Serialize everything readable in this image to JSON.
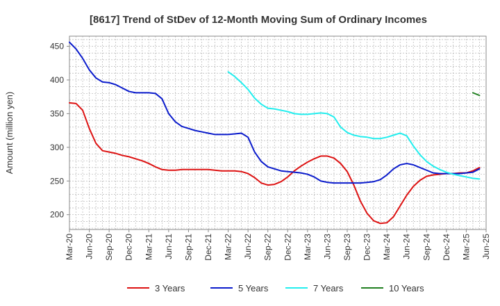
{
  "chart_data": {
    "type": "line",
    "title": "[8617]  Trend of StDev of 12-Month Moving Sum of Ordinary Incomes",
    "xlabel": "",
    "ylabel": "Amount (million yen)",
    "ylim": [
      178,
      465
    ],
    "yticks": [
      200,
      250,
      300,
      350,
      400,
      450
    ],
    "x_tick_labels": [
      "Mar-20",
      "Jun-20",
      "Sep-20",
      "Dec-20",
      "Mar-21",
      "Jun-21",
      "Sep-21",
      "Dec-21",
      "Mar-22",
      "Jun-22",
      "Sep-22",
      "Dec-22",
      "Mar-23",
      "Jun-23",
      "Sep-23",
      "Dec-23",
      "Mar-24",
      "Jun-24",
      "Sep-24",
      "Dec-24",
      "Mar-25",
      "Jun-25"
    ],
    "x_start": "Mar-20",
    "x_unit": "months since Mar-20",
    "x_range": [
      0,
      63
    ],
    "series": [
      {
        "name": "3 Years",
        "color": "#dd1111",
        "start_month": 0,
        "values": [
          366,
          365,
          355,
          328,
          306,
          295,
          293,
          291,
          288,
          286,
          283,
          280,
          276,
          271,
          267,
          266,
          266,
          267,
          267,
          267,
          267,
          267,
          266,
          265,
          265,
          265,
          264,
          261,
          255,
          247,
          244,
          245,
          249,
          256,
          265,
          272,
          278,
          283,
          287,
          287,
          284,
          276,
          264,
          244,
          220,
          202,
          191,
          187,
          188,
          197,
          213,
          229,
          242,
          251,
          257,
          259,
          260,
          261,
          261,
          262,
          262,
          265,
          270
        ]
      },
      {
        "name": "5 Years",
        "color": "#0a1bcc",
        "start_month": 0,
        "values": [
          456,
          446,
          432,
          415,
          403,
          397,
          396,
          393,
          388,
          383,
          381,
          381,
          381,
          380,
          372,
          350,
          338,
          331,
          328,
          325,
          323,
          321,
          319,
          319,
          319,
          320,
          321,
          315,
          293,
          279,
          271,
          268,
          265,
          264,
          263,
          262,
          260,
          256,
          250,
          248,
          247,
          247,
          247,
          247,
          247,
          248,
          249,
          252,
          259,
          268,
          274,
          276,
          274,
          270,
          266,
          262,
          261,
          261,
          261,
          261,
          262,
          263,
          268
        ]
      },
      {
        "name": "7 Years",
        "color": "#22eeee",
        "start_month": 24,
        "values": [
          412,
          405,
          396,
          386,
          373,
          364,
          358,
          357,
          355,
          353,
          350,
          349,
          349,
          350,
          351,
          350,
          345,
          330,
          322,
          318,
          316,
          315,
          313,
          313,
          315,
          318,
          321,
          317,
          302,
          289,
          279,
          272,
          267,
          263,
          260,
          258,
          256,
          254,
          253
        ]
      },
      {
        "name": "10 Years",
        "color": "#1f7f1f",
        "start_month": 61,
        "values": [
          381,
          377
        ]
      }
    ]
  }
}
